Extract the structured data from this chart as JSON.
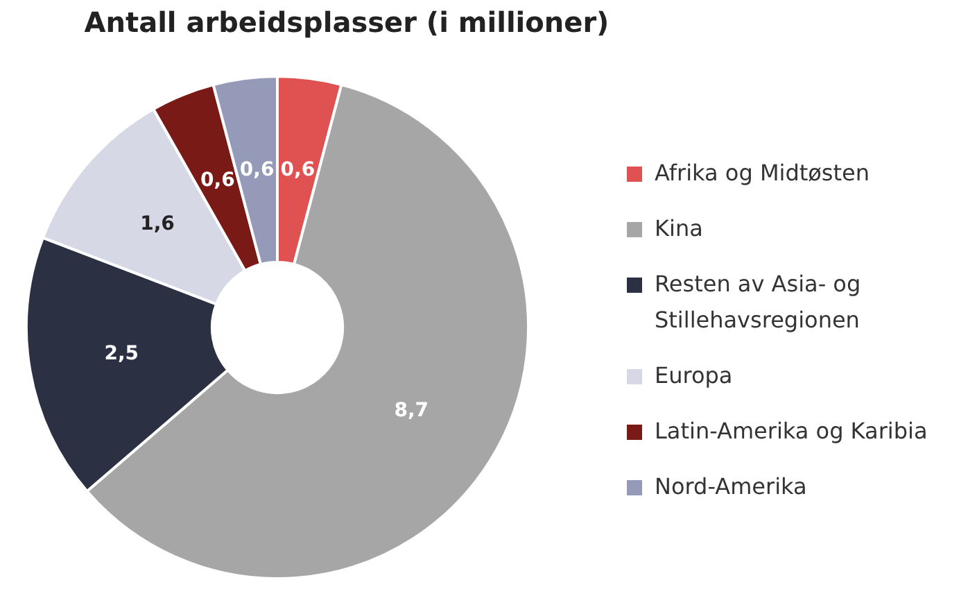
{
  "chart_data": {
    "type": "donut",
    "title": "Antall arbeidsplasser (i millioner)",
    "categories": [
      "Afrika og Midtøsten",
      "Kina",
      "Resten av Asia- og Stillehavsregionen",
      "Europa",
      "Latin-Amerika og Karibia",
      "Nord-Amerika"
    ],
    "values": [
      0.6,
      8.7,
      2.5,
      1.6,
      0.6,
      0.6
    ],
    "value_labels": [
      "0,6",
      "8,7",
      "2,5",
      "1,6",
      "0,6",
      "0,6"
    ],
    "colors": [
      "#e05252",
      "#a6a6a6",
      "#2b3042",
      "#d6d8e6",
      "#7a1a16",
      "#959ab9"
    ],
    "legend": "right"
  }
}
